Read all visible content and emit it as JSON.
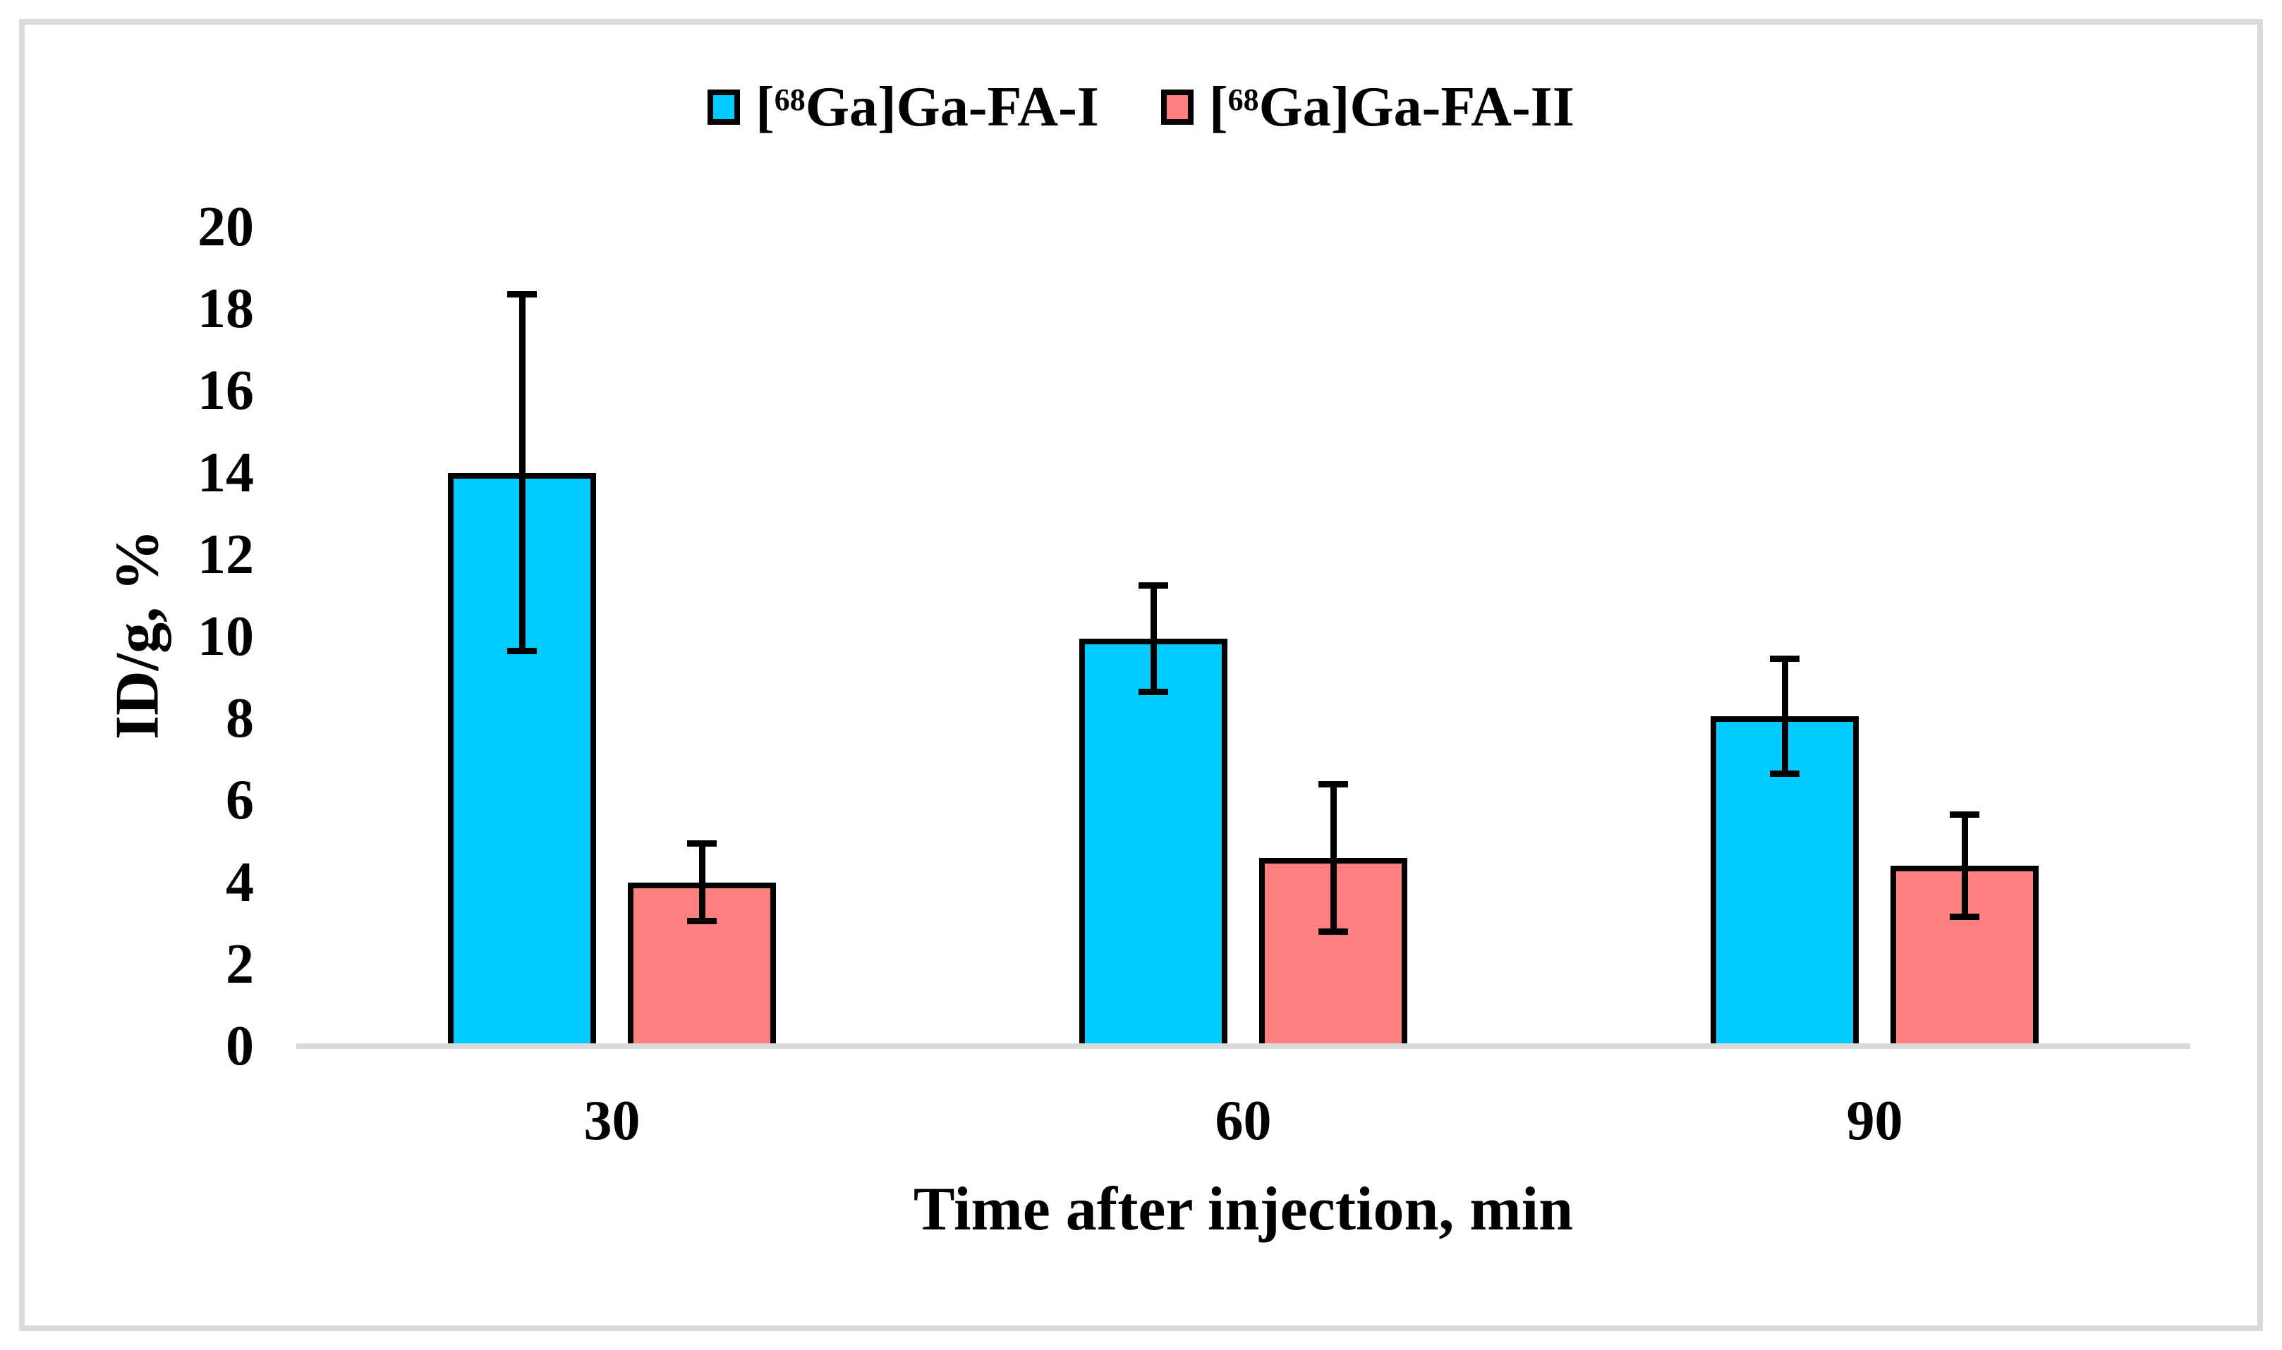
{
  "figure": {
    "background": "#ffffff",
    "frame_color": "#d9d9d9",
    "axis_line_color": "#d9d9d9",
    "text_color": "#000000",
    "bar_border_color": "#000000",
    "error_bar_color": "#000000"
  },
  "legend": {
    "entries": [
      {
        "pre": "[",
        "sup": "68",
        "post": "Ga]Ga-FA-I",
        "color": "#00ccff"
      },
      {
        "pre": "[",
        "sup": "68",
        "post": "Ga]Ga-FA-II",
        "color": "#ff7f7f"
      }
    ]
  },
  "chart_data": {
    "type": "bar",
    "categories": [
      "30",
      "60",
      "90"
    ],
    "series": [
      {
        "name": "[68Ga]Ga-FA-I",
        "color": "#00ccff",
        "values": [
          14.0,
          9.95,
          8.05
        ],
        "errors": [
          4.35,
          1.3,
          1.4
        ]
      },
      {
        "name": "[68Ga]Ga-FA-II",
        "color": "#ff7f7f",
        "values": [
          4.0,
          4.6,
          4.4
        ],
        "errors": [
          0.95,
          1.8,
          1.25
        ]
      }
    ],
    "xlabel": "Time after injection, min",
    "ylabel": "ID/g, %",
    "ylim": [
      0,
      20
    ],
    "ytick_step": 2,
    "legend_position": "top",
    "grid": false,
    "error_bars": true
  }
}
